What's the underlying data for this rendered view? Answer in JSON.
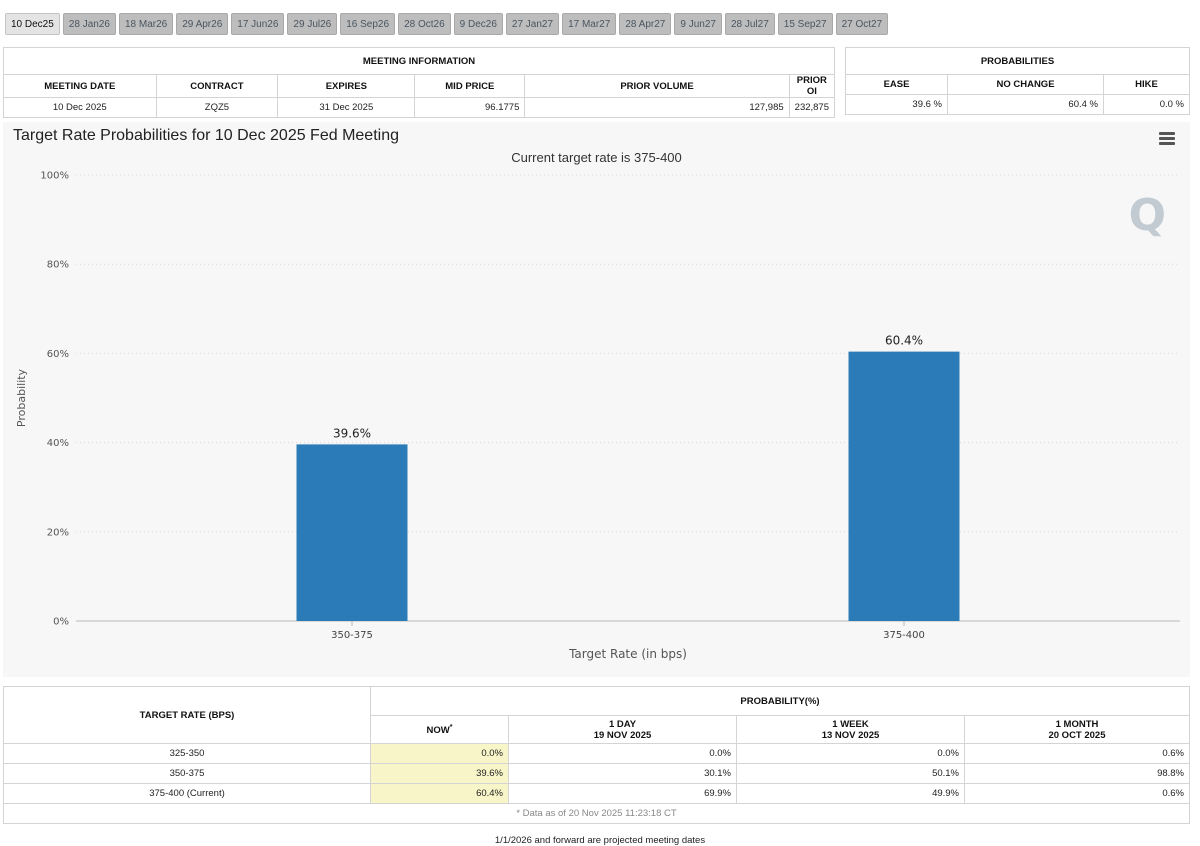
{
  "tabs": [
    "10 Dec25",
    "28 Jan26",
    "18 Mar26",
    "29 Apr26",
    "17 Jun26",
    "29 Jul26",
    "16 Sep26",
    "28 Oct26",
    "9 Dec26",
    "27 Jan27",
    "17 Mar27",
    "28 Apr27",
    "9 Jun27",
    "28 Jul27",
    "15 Sep27",
    "27 Oct27"
  ],
  "meeting_info": {
    "header": "MEETING INFORMATION",
    "columns": [
      "MEETING DATE",
      "CONTRACT",
      "EXPIRES",
      "MID PRICE",
      "PRIOR VOLUME",
      "PRIOR OI"
    ],
    "row": [
      "10 Dec 2025",
      "ZQZ5",
      "31 Dec 2025",
      "96.1775",
      "127,985",
      "232,875"
    ]
  },
  "probabilities": {
    "header": "PROBABILITIES",
    "columns": [
      "EASE",
      "NO CHANGE",
      "HIKE"
    ],
    "row": [
      "39.6 %",
      "60.4 %",
      "0.0 %"
    ]
  },
  "chart_data": {
    "type": "bar",
    "title": "Target Rate Probabilities for 10 Dec 2025 Fed Meeting",
    "subtitle": "Current target rate is 375-400",
    "categories": [
      "350-375",
      "375-400"
    ],
    "values": [
      39.6,
      60.4
    ],
    "data_labels": [
      "39.6%",
      "60.4%"
    ],
    "xlabel": "Target Rate (in bps)",
    "ylabel": "Probability",
    "ylim": [
      0,
      100
    ],
    "yticks": [
      0,
      20,
      40,
      60,
      80,
      100
    ],
    "ytick_labels": [
      "0%",
      "20%",
      "40%",
      "60%",
      "80%",
      "100%"
    ],
    "color": "#2b7bb9",
    "grid": true
  },
  "rate_table": {
    "target_header": "TARGET RATE (BPS)",
    "prob_header": "PROBABILITY(%)",
    "now_label": "NOW",
    "now_mark": "*",
    "cols": [
      {
        "label": "1 DAY",
        "date": "19 NOV 2025"
      },
      {
        "label": "1 WEEK",
        "date": "13 NOV 2025"
      },
      {
        "label": "1 MONTH",
        "date": "20 OCT 2025"
      }
    ],
    "rows": [
      {
        "rate": "325-350",
        "now": "0.0%",
        "day": "0.0%",
        "week": "0.0%",
        "month": "0.6%"
      },
      {
        "rate": "350-375",
        "now": "39.6%",
        "day": "30.1%",
        "week": "50.1%",
        "month": "98.8%"
      },
      {
        "rate": "375-400 (Current)",
        "now": "60.4%",
        "day": "69.9%",
        "week": "49.9%",
        "month": "0.6%"
      }
    ],
    "note": "* Data as of 20 Nov 2025 11:23:18 CT"
  },
  "footer": "1/1/2026 and forward are projected meeting dates",
  "watermark": "Q"
}
